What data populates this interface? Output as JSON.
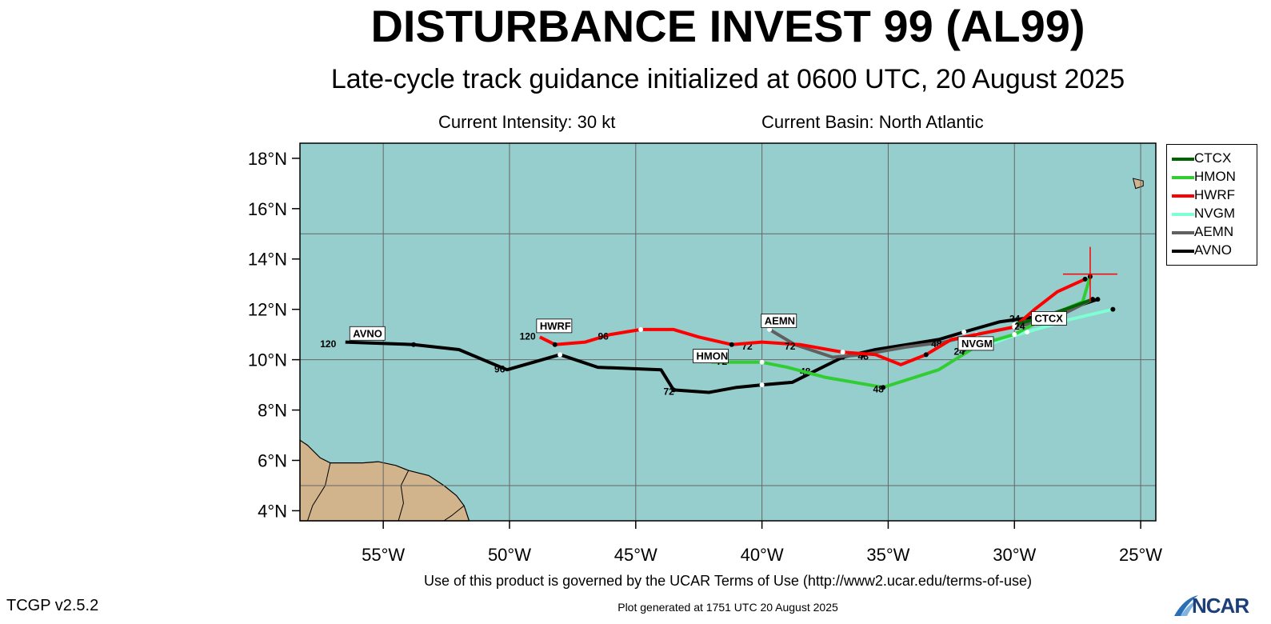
{
  "header": {
    "title": "DISTURBANCE INVEST 99 (AL99)",
    "subtitle": "Late-cycle track guidance initialized at 0600 UTC, 20 August 2025",
    "current_intensity": "Current Intensity: 30 kt",
    "current_basin": "Current Basin: North Atlantic"
  },
  "footer": {
    "terms": "Use of this product is governed by the UCAR Terms of Use (http://www2.ucar.edu/terms-of-use)",
    "generated": "Plot generated at 1751 UTC   20 August 2025",
    "version": "TCGP v2.5.2",
    "logo_text": "NCAR"
  },
  "map": {
    "lon_range": [
      -58.3,
      -24.4
    ],
    "lat_range": [
      3.6,
      18.6
    ],
    "lon_ticks": [
      -55,
      -50,
      -45,
      -40,
      -35,
      -30,
      -25
    ],
    "lon_tick_labels": [
      "55°W",
      "50°W",
      "45°W",
      "40°W",
      "35°W",
      "30°W",
      "25°W"
    ],
    "lat_ticks": [
      4,
      6,
      8,
      10,
      12,
      14,
      16,
      18
    ],
    "lat_tick_labels": [
      "4°N",
      "6°N",
      "8°N",
      "10°N",
      "12°N",
      "14°N",
      "16°N",
      "18°N"
    ],
    "grid_lon": [
      -55,
      -50,
      -45,
      -40,
      -35,
      -30,
      -25
    ],
    "grid_lat": [
      5,
      10,
      15
    ],
    "ocean_color": "#96cdcd",
    "land_color": "#d2b48c",
    "current_position": {
      "lon": -27.0,
      "lat": 13.4
    }
  },
  "legend": {
    "items": [
      {
        "name": "CTCX",
        "color": "#006400"
      },
      {
        "name": "HMON",
        "color": "#32cd32"
      },
      {
        "name": "HWRF",
        "color": "#ff0000"
      },
      {
        "name": "NVGM",
        "color": "#7fffd4"
      },
      {
        "name": "AEMN",
        "color": "#606060"
      },
      {
        "name": "AVNO",
        "color": "#000000"
      }
    ]
  },
  "chart_data": {
    "type": "line",
    "series": [
      {
        "name": "AVNO",
        "color": "#000000",
        "points": [
          [
            -26.7,
            12.4
          ],
          [
            -28.5,
            11.8
          ],
          [
            -30.6,
            11.5
          ],
          [
            -32,
            11.1
          ],
          [
            -33,
            10.8
          ],
          [
            -35.5,
            10.4
          ],
          [
            -36.8,
            10.1
          ],
          [
            -38,
            9.5
          ],
          [
            -38.8,
            9.1
          ],
          [
            -40,
            9.0
          ],
          [
            -41,
            8.9
          ],
          [
            -42.1,
            8.7
          ],
          [
            -43.5,
            8.8
          ],
          [
            -44,
            9.6
          ],
          [
            -46.5,
            9.7
          ],
          [
            -48,
            10.2
          ],
          [
            -50.1,
            9.6
          ],
          [
            -52,
            10.4
          ],
          [
            -53.8,
            10.6
          ],
          [
            -56.5,
            10.7
          ]
        ],
        "labels": [
          {
            "text": "96",
            "lon": -50.6,
            "lat": 9.5
          },
          {
            "text": "72",
            "lon": -43.9,
            "lat": 8.6
          },
          {
            "text": "48",
            "lon": -38.5,
            "lat": 9.4
          },
          {
            "text": "24",
            "lon": -30.2,
            "lat": 11.5
          },
          {
            "text": "120",
            "lon": -57.5,
            "lat": 10.5
          }
        ],
        "box": {
          "text": "AVNO",
          "lon": -56.2,
          "lat": 10.9
        }
      },
      {
        "name": "HWRF",
        "color": "#ff0000",
        "points": [
          [
            -27.2,
            13.2
          ],
          [
            -28.3,
            12.7
          ],
          [
            -29.2,
            12.0
          ],
          [
            -30.0,
            11.3
          ],
          [
            -31.5,
            11.0
          ],
          [
            -32.5,
            10.8
          ],
          [
            -33.5,
            10.2
          ],
          [
            -34.5,
            9.8
          ],
          [
            -35.5,
            10.2
          ],
          [
            -36.8,
            10.3
          ],
          [
            -38.5,
            10.6
          ],
          [
            -40.0,
            10.7
          ],
          [
            -41.2,
            10.6
          ],
          [
            -42.5,
            10.9
          ],
          [
            -43.5,
            11.2
          ],
          [
            -44.8,
            11.2
          ],
          [
            -46,
            11.0
          ],
          [
            -47,
            10.7
          ],
          [
            -48.2,
            10.6
          ],
          [
            -48.8,
            10.9
          ]
        ],
        "labels": [
          {
            "text": "24",
            "lon": -32.4,
            "lat": 10.2
          },
          {
            "text": "72",
            "lon": -39.1,
            "lat": 10.4
          },
          {
            "text": "96",
            "lon": -46.5,
            "lat": 10.8
          },
          {
            "text": "120",
            "lon": -49.6,
            "lat": 10.8
          }
        ],
        "box": {
          "text": "HWRF",
          "lon": -48.8,
          "lat": 11.2
        }
      },
      {
        "name": "HMON",
        "color": "#32cd32",
        "points": [
          [
            -27.0,
            13.3
          ],
          [
            -27.3,
            12.3
          ],
          [
            -28.5,
            11.8
          ],
          [
            -30.0,
            11.0
          ],
          [
            -31.4,
            10.6
          ],
          [
            -33.0,
            9.6
          ],
          [
            -35.2,
            8.9
          ],
          [
            -37.5,
            9.3
          ],
          [
            -39.0,
            9.7
          ],
          [
            -40.0,
            9.9
          ],
          [
            -41.2,
            9.9
          ],
          [
            -42.0,
            9.9
          ]
        ],
        "labels": [
          {
            "text": "48",
            "lon": -35.6,
            "lat": 8.7
          },
          {
            "text": "72",
            "lon": -41.8,
            "lat": 9.8
          },
          {
            "text": "24",
            "lon": -31.8,
            "lat": 10.4
          }
        ],
        "box": {
          "text": "HMON",
          "lon": -42.6,
          "lat": 10.0
        }
      },
      {
        "name": "NVGM",
        "color": "#7fffd4",
        "points": [
          [
            -26.1,
            12.0
          ],
          [
            -27.8,
            11.6
          ],
          [
            -28.8,
            11.3
          ],
          [
            -29.5,
            11.1
          ],
          [
            -30.2,
            10.9
          ],
          [
            -31.0,
            10.6
          ],
          [
            -32.0,
            10.4
          ]
        ],
        "labels": [],
        "box": {
          "text": "NVGM",
          "lon": -32.1,
          "lat": 10.5
        }
      },
      {
        "name": "AEMN",
        "color": "#606060",
        "points": [
          [
            -26.9,
            12.4
          ],
          [
            -28.5,
            11.6
          ],
          [
            -30.0,
            11.3
          ],
          [
            -31.5,
            11.0
          ],
          [
            -32.8,
            10.7
          ],
          [
            -34.3,
            10.5
          ],
          [
            -36.0,
            10.2
          ],
          [
            -37.2,
            10.1
          ],
          [
            -38.7,
            10.6
          ],
          [
            -39.7,
            11.2
          ]
        ],
        "labels": [
          {
            "text": "48",
            "lon": -33.3,
            "lat": 10.5
          },
          {
            "text": "48",
            "lon": -36.2,
            "lat": 10.0
          },
          {
            "text": "72",
            "lon": -40.8,
            "lat": 10.4
          }
        ],
        "box": {
          "text": "AEMN",
          "lon": -39.9,
          "lat": 11.4
        }
      },
      {
        "name": "CTCX",
        "color": "#006400",
        "points": [
          [
            -26.9,
            12.4
          ],
          [
            -28.0,
            12.0
          ],
          [
            -29.2,
            11.6
          ],
          [
            -30.0,
            11.4
          ]
        ],
        "labels": [
          {
            "text": "24",
            "lon": -30.0,
            "lat": 11.2
          }
        ],
        "box": {
          "text": "CTCX",
          "lon": -29.2,
          "lat": 11.5
        }
      }
    ]
  }
}
